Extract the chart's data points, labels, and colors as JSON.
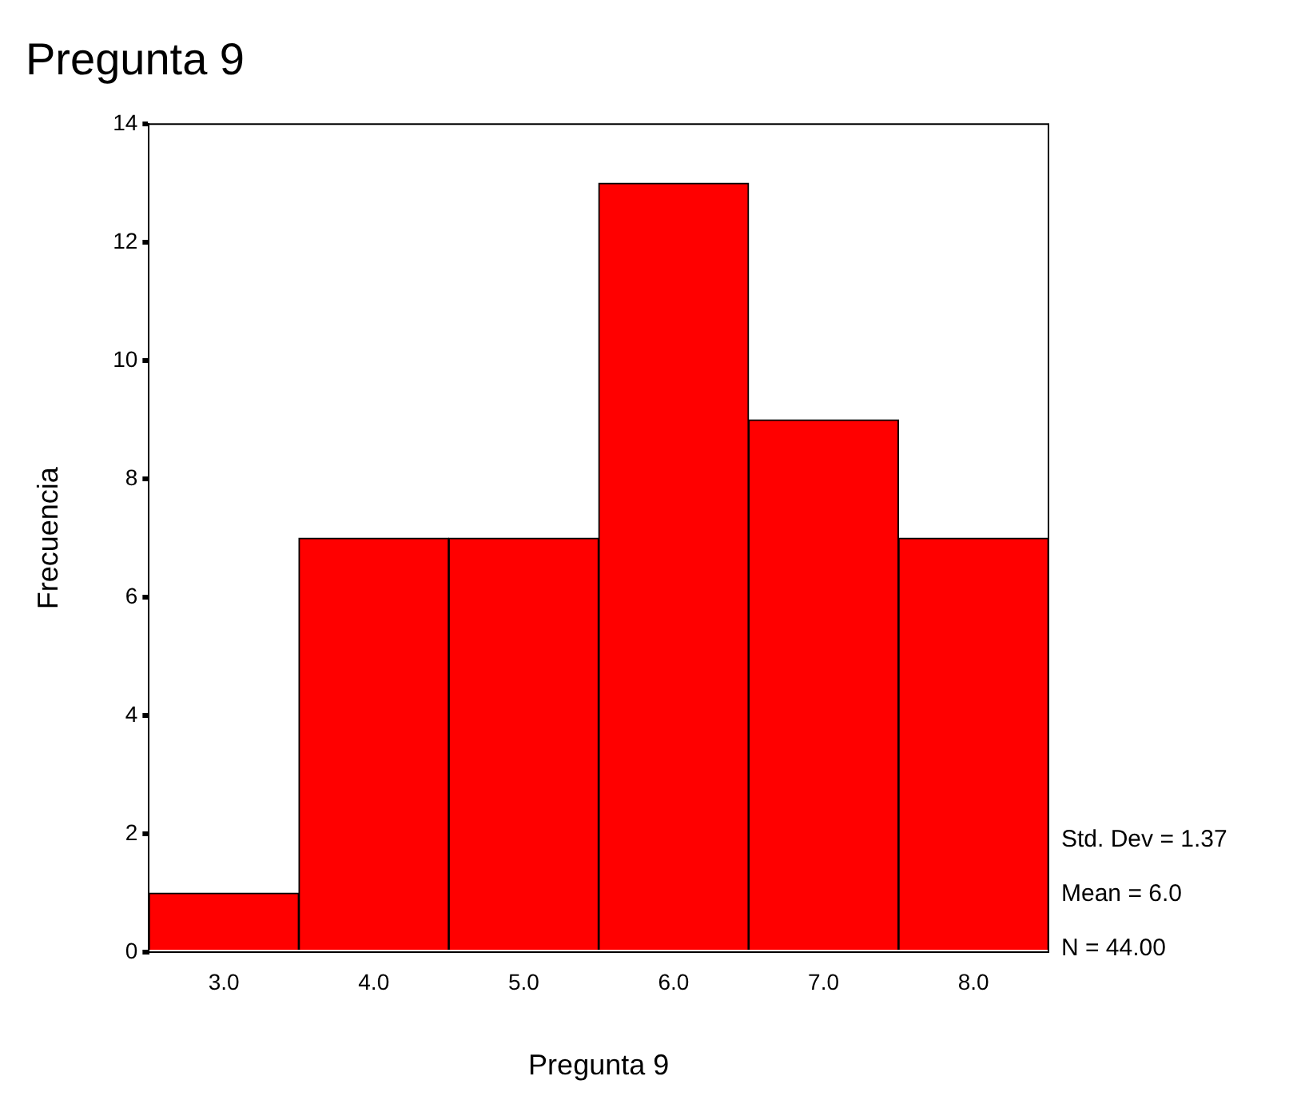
{
  "chart_data": {
    "type": "histogram",
    "title": "Pregunta 9",
    "xlabel": "Pregunta 9",
    "ylabel": "Frecuencia",
    "bins": [
      2.5,
      3.5,
      4.5,
      5.5,
      6.5,
      7.5,
      8.5
    ],
    "values": [
      1,
      7,
      7,
      13,
      9,
      7
    ],
    "color": "#ff0000",
    "xlim": [
      2.5,
      8.5
    ],
    "xticks": [
      {
        "value": 3,
        "label": "3.0"
      },
      {
        "value": 4,
        "label": "4.0"
      },
      {
        "value": 5,
        "label": "5.0"
      },
      {
        "value": 6,
        "label": "6.0"
      },
      {
        "value": 7,
        "label": "7.0"
      },
      {
        "value": 8,
        "label": "8.0"
      }
    ],
    "ylim": [
      0,
      14
    ],
    "yticks": [
      0,
      2,
      4,
      6,
      8,
      10,
      12,
      14
    ],
    "annotations": [
      "Std. Dev = 1.37",
      "Mean = 6.0",
      "N = 44.00"
    ]
  }
}
